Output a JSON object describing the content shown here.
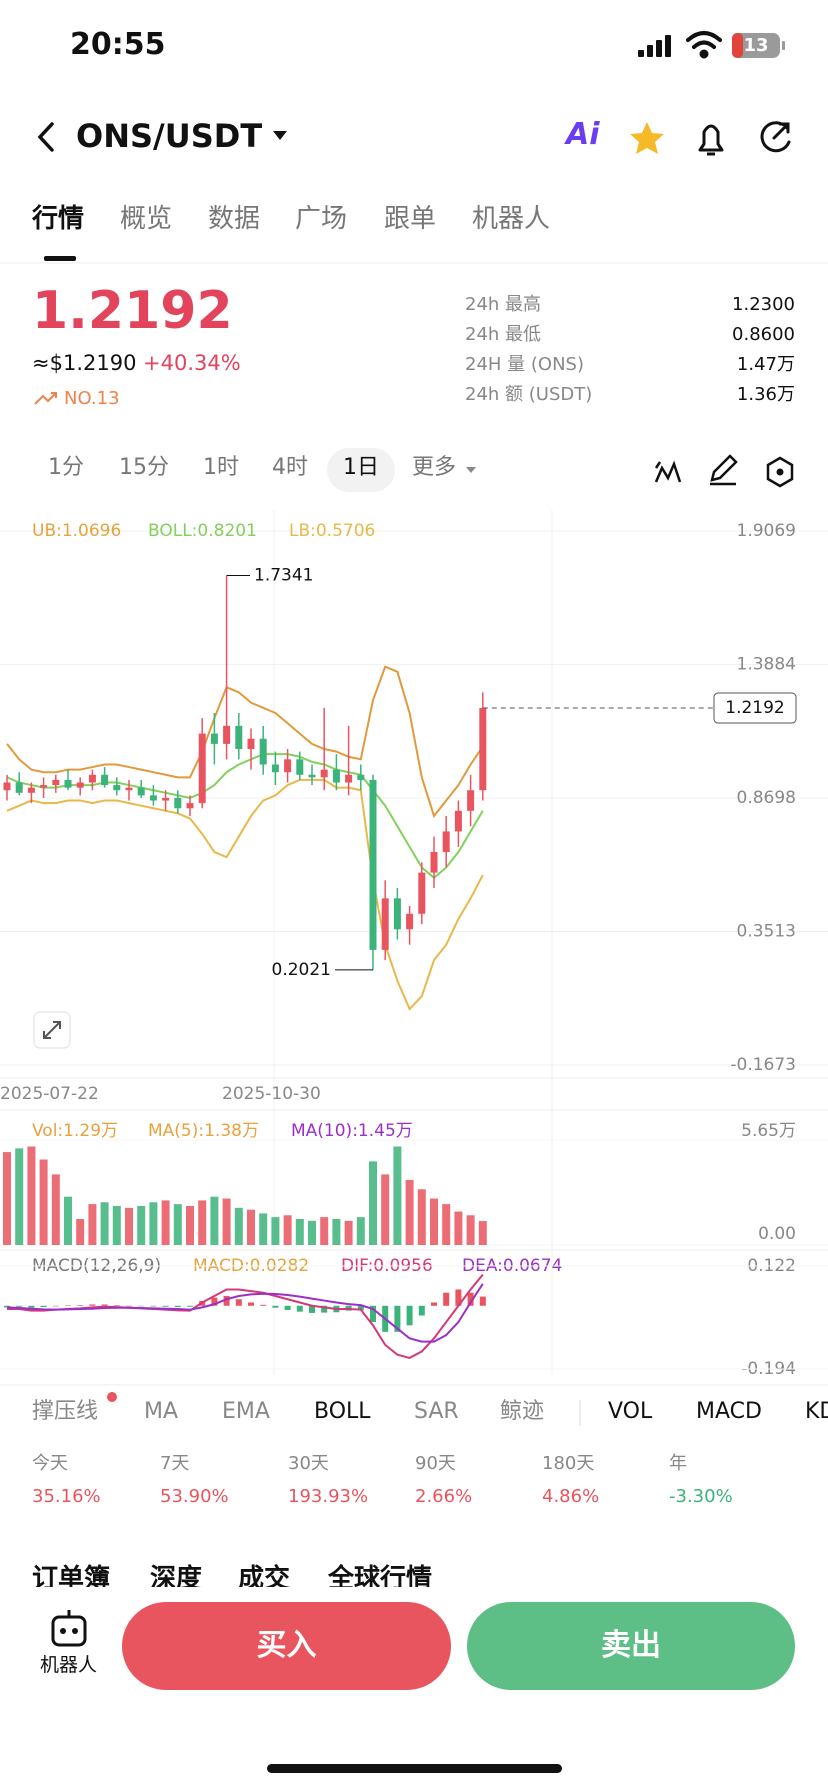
{
  "status": {
    "time": "20:55",
    "battery": "13"
  },
  "header": {
    "pair": "ONS/USDT",
    "ai": "Ai"
  },
  "tabs": [
    "行情",
    "概览",
    "数据",
    "广场",
    "跟单",
    "机器人"
  ],
  "ticker": {
    "usd": "≈$1.2190",
    "change": "+40.34%",
    "rank": "NO.13",
    "stats": [
      {
        "label": "24h  最高",
        "value": "1.2300"
      },
      {
        "label": "24h  最低",
        "value": "0.8600"
      },
      {
        "label": "24H  量 (ONS)",
        "value": "1.47万"
      },
      {
        "label": "24h  额 (USDT)",
        "value": "1.36万"
      }
    ]
  },
  "intervals": [
    "1分",
    "15分",
    "1时",
    "4时",
    "1日",
    "更多"
  ],
  "kline": {
    "legend": [
      "UB:1.0696",
      "BOLL:0.8201",
      "LB:0.5706"
    ],
    "ylim": [
      -0.1673,
      1.9069
    ],
    "yticks": [
      1.9069,
      1.3884,
      0.8698,
      0.3513,
      -0.1673
    ],
    "dates": [
      "2025-07-22",
      "2025-10-30"
    ],
    "candles": [
      [
        0.9,
        0.96,
        0.86,
        0.93
      ],
      [
        0.93,
        0.97,
        0.88,
        0.89
      ],
      [
        0.89,
        0.93,
        0.85,
        0.91
      ],
      [
        0.91,
        0.95,
        0.87,
        0.92
      ],
      [
        0.92,
        0.96,
        0.89,
        0.94
      ],
      [
        0.94,
        0.98,
        0.9,
        0.91
      ],
      [
        0.91,
        0.95,
        0.88,
        0.93
      ],
      [
        0.93,
        0.98,
        0.9,
        0.96
      ],
      [
        0.96,
        0.99,
        0.91,
        0.92
      ],
      [
        0.92,
        0.95,
        0.88,
        0.9
      ],
      [
        0.9,
        0.94,
        0.86,
        0.91
      ],
      [
        0.91,
        0.94,
        0.87,
        0.88
      ],
      [
        0.88,
        0.92,
        0.84,
        0.86
      ],
      [
        0.86,
        0.9,
        0.82,
        0.87
      ],
      [
        0.87,
        0.9,
        0.81,
        0.83
      ],
      [
        0.83,
        0.88,
        0.8,
        0.85
      ],
      [
        0.85,
        1.18,
        0.83,
        1.12
      ],
      [
        1.12,
        1.2,
        1.0,
        1.08
      ],
      [
        1.08,
        1.7341,
        1.02,
        1.15
      ],
      [
        1.15,
        1.2,
        1.02,
        1.06
      ],
      [
        1.06,
        1.14,
        0.98,
        1.1
      ],
      [
        1.1,
        1.15,
        0.96,
        1.0
      ],
      [
        1.0,
        1.05,
        0.92,
        0.97
      ],
      [
        0.97,
        1.06,
        0.93,
        1.02
      ],
      [
        1.02,
        1.05,
        0.94,
        0.96
      ],
      [
        0.96,
        1.0,
        0.92,
        0.95
      ],
      [
        0.95,
        1.22,
        0.9,
        0.98
      ],
      [
        0.98,
        1.04,
        0.9,
        0.93
      ],
      [
        0.93,
        1.15,
        0.88,
        0.96
      ],
      [
        0.96,
        1.0,
        0.9,
        0.94
      ],
      [
        0.94,
        0.96,
        0.2021,
        0.28
      ],
      [
        0.28,
        0.55,
        0.24,
        0.48
      ],
      [
        0.48,
        0.52,
        0.32,
        0.36
      ],
      [
        0.36,
        0.45,
        0.3,
        0.42
      ],
      [
        0.42,
        0.62,
        0.38,
        0.58
      ],
      [
        0.58,
        0.72,
        0.52,
        0.66
      ],
      [
        0.66,
        0.8,
        0.6,
        0.74
      ],
      [
        0.74,
        0.86,
        0.68,
        0.82
      ],
      [
        0.82,
        0.96,
        0.76,
        0.9
      ],
      [
        0.9,
        1.28,
        0.86,
        1.2192
      ]
    ],
    "ub": [
      1.08,
      1.02,
      0.98,
      0.97,
      0.97,
      0.98,
      0.98,
      0.99,
      1.0,
      1.0,
      0.99,
      0.98,
      0.97,
      0.96,
      0.95,
      0.95,
      1.05,
      1.18,
      1.3,
      1.28,
      1.24,
      1.22,
      1.2,
      1.16,
      1.12,
      1.08,
      1.06,
      1.05,
      1.03,
      1.02,
      1.25,
      1.38,
      1.36,
      1.2,
      0.95,
      0.8,
      0.86,
      0.92,
      1.0,
      1.0696
    ],
    "mid": [
      0.95,
      0.93,
      0.92,
      0.91,
      0.91,
      0.92,
      0.92,
      0.92,
      0.93,
      0.93,
      0.92,
      0.91,
      0.9,
      0.89,
      0.88,
      0.87,
      0.89,
      0.92,
      0.97,
      1.0,
      1.02,
      1.04,
      1.04,
      1.04,
      1.03,
      1.01,
      1.0,
      0.98,
      0.97,
      0.96,
      0.9,
      0.84,
      0.76,
      0.68,
      0.6,
      0.56,
      0.6,
      0.66,
      0.74,
      0.8201
    ],
    "lb": [
      0.82,
      0.84,
      0.86,
      0.85,
      0.85,
      0.86,
      0.86,
      0.85,
      0.86,
      0.86,
      0.85,
      0.84,
      0.83,
      0.82,
      0.81,
      0.79,
      0.73,
      0.66,
      0.64,
      0.72,
      0.8,
      0.86,
      0.88,
      0.92,
      0.94,
      0.94,
      0.94,
      0.91,
      0.91,
      0.9,
      0.55,
      0.3,
      0.16,
      0.05,
      0.1,
      0.24,
      0.3,
      0.4,
      0.48,
      0.5706
    ]
  },
  "volume": {
    "legend": [
      "Vol:1.29万",
      "MA(5):1.38万",
      "MA(10):1.45万"
    ],
    "ylim": [
      0,
      5.65
    ],
    "yticks": [
      {
        "value": 5.65,
        "label": "5.65万"
      },
      {
        "value": 0,
        "label": "0.00"
      }
    ],
    "values": [
      5.0,
      5.2,
      5.3,
      4.6,
      3.8,
      2.6,
      1.4,
      2.2,
      2.3,
      2.1,
      2.0,
      2.1,
      2.3,
      2.4,
      2.2,
      2.1,
      2.4,
      2.6,
      2.5,
      2.0,
      1.9,
      1.7,
      1.5,
      1.6,
      1.4,
      1.3,
      1.5,
      1.4,
      1.3,
      1.5,
      4.5,
      3.8,
      5.3,
      3.5,
      3.0,
      2.5,
      2.2,
      1.8,
      1.6,
      1.29
    ]
  },
  "macd": {
    "legend": [
      "MACD(12,26,9)",
      "MACD:0.0282",
      "DIF:0.0956",
      "DEA:0.0674"
    ],
    "ylim": [
      -0.194,
      0.122
    ],
    "yticks": [
      0.122,
      -0.194
    ],
    "hist": [
      -0.005,
      -0.003,
      -0.006,
      -0.004,
      0,
      0.001,
      0.002,
      0.004,
      0.004,
      0.002,
      0,
      -0.001,
      -0.002,
      -0.003,
      -0.004,
      -0.003,
      0.015,
      0.025,
      0.03,
      0.02,
      0.01,
      0.003,
      -0.006,
      -0.013,
      -0.018,
      -0.022,
      -0.021,
      -0.02,
      -0.015,
      -0.014,
      -0.05,
      -0.08,
      -0.08,
      -0.06,
      -0.03,
      0.01,
      0.04,
      0.05,
      0.04,
      0.0282
    ],
    "dif": [
      -0.01,
      -0.01,
      -0.015,
      -0.015,
      -0.012,
      -0.01,
      -0.008,
      -0.005,
      -0.003,
      -0.004,
      -0.006,
      -0.008,
      -0.01,
      -0.012,
      -0.014,
      -0.015,
      0.01,
      0.03,
      0.05,
      0.05,
      0.045,
      0.04,
      0.03,
      0.02,
      0.01,
      0.0,
      -0.005,
      -0.01,
      -0.01,
      -0.012,
      -0.06,
      -0.12,
      -0.15,
      -0.16,
      -0.14,
      -0.1,
      -0.05,
      0.0,
      0.05,
      0.0956
    ],
    "dea": [
      -0.005,
      -0.007,
      -0.009,
      -0.011,
      -0.012,
      -0.011,
      -0.01,
      -0.009,
      -0.007,
      -0.006,
      -0.006,
      -0.007,
      -0.008,
      -0.009,
      -0.01,
      -0.012,
      -0.005,
      0.005,
      0.02,
      0.03,
      0.035,
      0.037,
      0.036,
      0.033,
      0.028,
      0.022,
      0.016,
      0.01,
      0.005,
      0.002,
      -0.01,
      -0.04,
      -0.07,
      -0.1,
      -0.11,
      -0.11,
      -0.09,
      -0.05,
      0.01,
      0.0674
    ]
  },
  "indicators": [
    "撑压线",
    "MA",
    "EMA",
    "BOLL",
    "SAR",
    "鲸迹",
    "VOL",
    "MACD",
    "KD"
  ],
  "returns": [
    {
      "label": "今天",
      "value": "35.16%"
    },
    {
      "label": "7天",
      "value": "53.90%"
    },
    {
      "label": "30天",
      "value": "193.93%"
    },
    {
      "label": "90天",
      "value": "2.66%"
    },
    {
      "label": "180天",
      "value": "4.86%"
    },
    {
      "label": "年",
      "value": "-3.30%"
    }
  ],
  "sections": [
    "订单簿",
    "深度",
    "成交",
    "全球行情"
  ],
  "bottom": {
    "robot": "机器人",
    "buy": "买入",
    "sell": "卖出"
  }
}
